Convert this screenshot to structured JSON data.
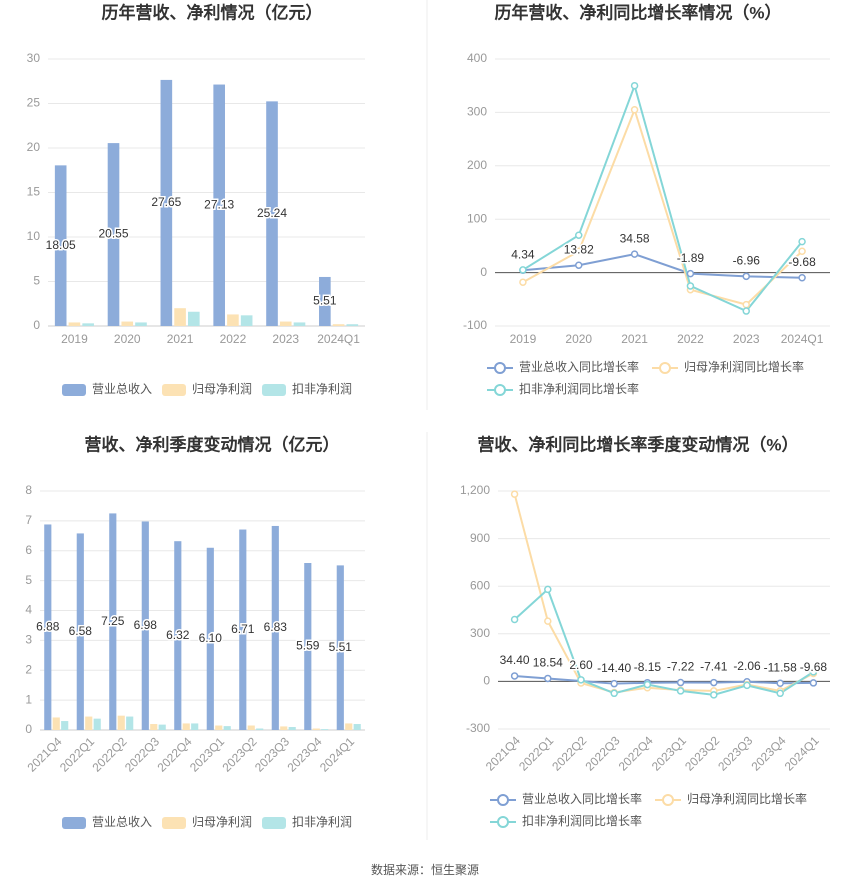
{
  "chart_data": [
    {
      "type": "bar",
      "title": "历年营收、净利情况（亿元）",
      "categories": [
        "2019",
        "2020",
        "2021",
        "2022",
        "2023",
        "2024Q1"
      ],
      "series": [
        {
          "name": "营业总收入",
          "color": "#8dacda",
          "labels": true,
          "values": [
            18.05,
            20.55,
            27.65,
            27.13,
            25.24,
            5.51
          ]
        },
        {
          "name": "归母净利润",
          "color": "#fce2b4",
          "values": [
            0.4,
            0.5,
            2.0,
            1.3,
            0.5,
            0.2
          ]
        },
        {
          "name": "扣非净利润",
          "color": "#b3e5e7",
          "values": [
            0.3,
            0.4,
            1.6,
            1.2,
            0.4,
            0.2
          ]
        }
      ],
      "ylim": [
        0,
        30
      ],
      "yticks": [
        0,
        5,
        10,
        15,
        20,
        25,
        30
      ],
      "grid": true,
      "legend": "bottom"
    },
    {
      "type": "line",
      "title": "历年营收、净利同比增长率情况（%）",
      "categories": [
        "2019",
        "2020",
        "2021",
        "2022",
        "2023",
        "2024Q1"
      ],
      "series": [
        {
          "name": "营业总收入同比增长率",
          "color": "#7f9fd3",
          "labels": true,
          "values": [
            4.34,
            13.82,
            34.58,
            -1.89,
            -6.96,
            -9.68
          ]
        },
        {
          "name": "归母净利润同比增长率",
          "color": "#fcdca6",
          "values": [
            -18,
            40,
            305,
            -32,
            -60,
            40
          ]
        },
        {
          "name": "扣非净利润同比增长率",
          "color": "#84d6d7",
          "values": [
            5,
            70,
            350,
            -25,
            -72,
            58
          ]
        }
      ],
      "ylim": [
        -100,
        400
      ],
      "yticks": [
        -100,
        0,
        100,
        200,
        300,
        400
      ],
      "grid": true,
      "legend": "bottom"
    },
    {
      "type": "bar",
      "title": "营收、净利季度变动情况（亿元）",
      "categories": [
        "2021Q4",
        "2022Q1",
        "2022Q2",
        "2022Q3",
        "2022Q4",
        "2023Q1",
        "2023Q2",
        "2023Q3",
        "2023Q4",
        "2024Q1"
      ],
      "series": [
        {
          "name": "营业总收入",
          "color": "#8dacda",
          "labels": true,
          "values": [
            6.88,
            6.58,
            7.25,
            6.98,
            6.32,
            6.1,
            6.71,
            6.83,
            5.59,
            5.51
          ],
          "value_labels": [
            "6.88",
            "6.58",
            "7.25",
            "6.98",
            "6.32",
            "6.10",
            "6.71",
            "6.83",
            "5.59",
            "5.51"
          ]
        },
        {
          "name": "归母净利润",
          "color": "#fce2b4",
          "values": [
            0.42,
            0.45,
            0.48,
            0.2,
            0.22,
            0.15,
            0.15,
            0.12,
            0.05,
            0.22
          ]
        },
        {
          "name": "扣非净利润",
          "color": "#b3e5e7",
          "values": [
            0.3,
            0.38,
            0.45,
            0.18,
            0.22,
            0.13,
            0.05,
            0.1,
            0.03,
            0.2
          ]
        }
      ],
      "ylim": [
        0,
        8
      ],
      "yticks": [
        0,
        1,
        2,
        3,
        4,
        5,
        6,
        7,
        8
      ],
      "grid": true,
      "legend": "bottom"
    },
    {
      "type": "line",
      "title": "营收、净利同比增长率季度变动情况（%）",
      "categories": [
        "2021Q4",
        "2022Q1",
        "2022Q2",
        "2022Q3",
        "2022Q4",
        "2023Q1",
        "2023Q2",
        "2023Q3",
        "2023Q4",
        "2024Q1"
      ],
      "series": [
        {
          "name": "营业总收入同比增长率",
          "color": "#7f9fd3",
          "labels": true,
          "values": [
            34.4,
            18.54,
            2.6,
            -14.4,
            -8.15,
            -7.22,
            -7.41,
            -2.06,
            -11.58,
            -9.68
          ],
          "value_labels": [
            "34.40",
            "18.54",
            "2.60",
            "-14.40",
            "-8.15",
            "-7.22",
            "-7.41",
            "-2.06",
            "-11.58",
            "-9.68"
          ]
        },
        {
          "name": "归母净利润同比增长率",
          "color": "#fcdca6",
          "values": [
            1180,
            380,
            -10,
            -70,
            -40,
            -55,
            -60,
            -20,
            -60,
            50
          ]
        },
        {
          "name": "扣非净利润同比增长率",
          "color": "#84d6d7",
          "values": [
            390,
            580,
            10,
            -75,
            -20,
            -60,
            -85,
            -25,
            -75,
            60
          ]
        }
      ],
      "ylim": [
        -300,
        1200
      ],
      "yticks": [
        -300,
        0,
        300,
        600,
        900,
        {
          "value": 1200,
          "label": "1,200"
        }
      ],
      "grid": true,
      "legend": "bottom"
    }
  ],
  "source": "数据来源：恒生聚源"
}
